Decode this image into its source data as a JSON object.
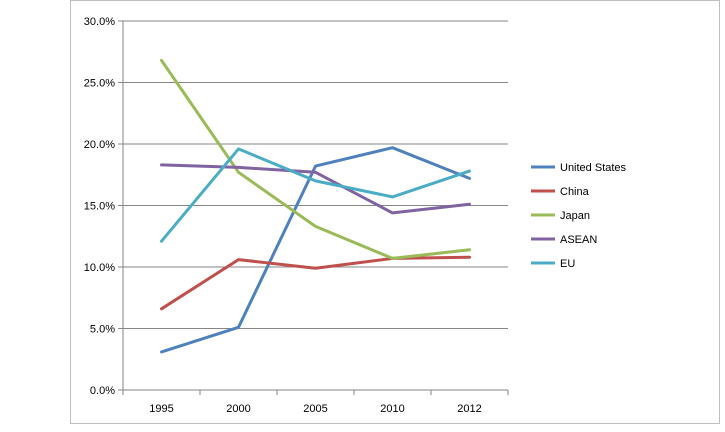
{
  "chart_data": {
    "type": "line",
    "title": "",
    "xlabel": "",
    "ylabel": "",
    "categories": [
      "1995",
      "2000",
      "2005",
      "2010",
      "2012"
    ],
    "y_ticks": [
      "0.0%",
      "5.0%",
      "10.0%",
      "15.0%",
      "20.0%",
      "25.0%",
      "30.0%"
    ],
    "ylim": [
      0,
      30
    ],
    "grid": true,
    "legend_position": "right",
    "series": [
      {
        "name": "United States",
        "color": "#4F81BD",
        "values": [
          3.1,
          5.1,
          18.2,
          19.7,
          17.2
        ]
      },
      {
        "name": "China",
        "color": "#C0504D",
        "values": [
          6.6,
          10.6,
          9.9,
          10.7,
          10.8
        ]
      },
      {
        "name": "Japan",
        "color": "#9BBB59",
        "values": [
          26.8,
          17.7,
          13.3,
          10.7,
          11.4
        ]
      },
      {
        "name": "ASEAN",
        "color": "#8064A2",
        "values": [
          18.3,
          18.1,
          17.7,
          14.4,
          15.1
        ]
      },
      {
        "name": "EU",
        "color": "#4BACC6",
        "values": [
          12.1,
          19.6,
          17.0,
          15.7,
          17.8
        ]
      }
    ]
  }
}
